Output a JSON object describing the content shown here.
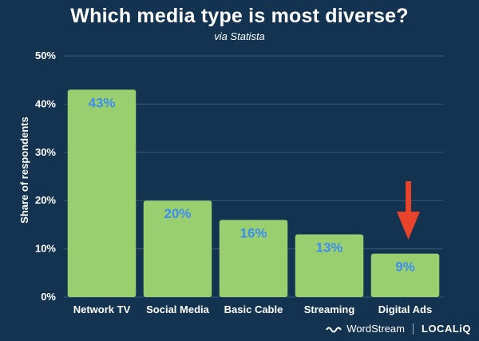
{
  "chart_data": {
    "type": "bar",
    "title": "Which media type is most diverse?",
    "subtitle": "via Statista",
    "categories": [
      "Network TV",
      "Social Media",
      "Basic Cable",
      "Streaming",
      "Digital Ads"
    ],
    "values": [
      43,
      20,
      16,
      13,
      9
    ],
    "value_labels": [
      "43%",
      "20%",
      "16%",
      "13%",
      "9%"
    ],
    "ylabel": "Share of respondents",
    "xlabel": "",
    "ylim": [
      0,
      50
    ],
    "yticks": [
      0,
      10,
      20,
      30,
      40,
      50
    ],
    "ytick_labels": [
      "0%",
      "10%",
      "20%",
      "30%",
      "40%",
      "50%"
    ],
    "grid": true,
    "highlight_category": "Digital Ads"
  },
  "footer": {
    "brand1": "WordStream",
    "brand2": "LOCALiQ"
  },
  "colors": {
    "background": "#143350",
    "bar": "#9ACF70",
    "value_label": "#3D8EF0",
    "arrow": "#E8432B",
    "grid": "#3b5875"
  }
}
